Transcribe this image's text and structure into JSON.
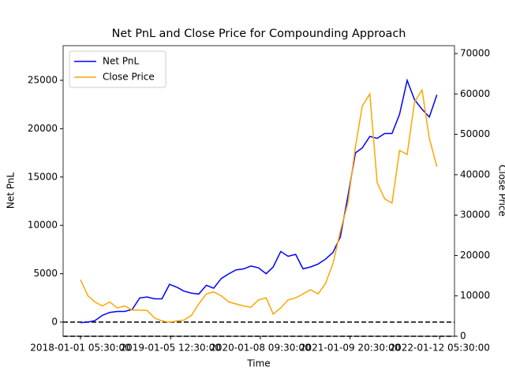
{
  "chart_data": {
    "type": "line",
    "title": "Net PnL and Close Price for Compounding Approach",
    "xlabel": "Time",
    "ylabel": "Net PnL",
    "y2label": "Close Price",
    "x": [
      "2018-01-01",
      "2018-02-01",
      "2018-03-01",
      "2018-04-01",
      "2018-05-01",
      "2018-06-01",
      "2018-07-01",
      "2018-08-01",
      "2018-09-01",
      "2018-10-01",
      "2018-11-01",
      "2018-12-01",
      "2019-01-01",
      "2019-02-01",
      "2019-03-01",
      "2019-04-01",
      "2019-05-01",
      "2019-06-01",
      "2019-07-01",
      "2019-08-01",
      "2019-09-01",
      "2019-10-01",
      "2019-11-01",
      "2019-12-01",
      "2020-01-01",
      "2020-02-01",
      "2020-03-01",
      "2020-04-01",
      "2020-05-01",
      "2020-06-01",
      "2020-07-01",
      "2020-08-01",
      "2020-09-01",
      "2020-10-01",
      "2020-11-01",
      "2020-12-01",
      "2021-01-01",
      "2021-02-01",
      "2021-03-01",
      "2021-04-01",
      "2021-05-01",
      "2021-06-01",
      "2021-07-01",
      "2021-08-01",
      "2021-09-01",
      "2021-10-01",
      "2021-11-01",
      "2021-12-01",
      "2022-01-01"
    ],
    "series": [
      {
        "name": "Net PnL",
        "color": "#0000ff",
        "axis": "y",
        "values": [
          -50,
          0,
          150,
          700,
          1000,
          1100,
          1100,
          1300,
          2500,
          2600,
          2400,
          2400,
          3900,
          3600,
          3200,
          3000,
          2900,
          3800,
          3500,
          4500,
          5000,
          5400,
          5500,
          5800,
          5600,
          5000,
          5700,
          7300,
          6800,
          7000,
          5500,
          5700,
          6000,
          6500,
          7200,
          8800,
          13000,
          17500,
          18000,
          19200,
          19000,
          19500,
          19500,
          21500,
          25000,
          23000,
          22000,
          21200,
          23500
        ]
      },
      {
        "name": "Close Price",
        "color": "#ffa500",
        "axis": "y2",
        "values": [
          14000,
          10000,
          8500,
          7500,
          8500,
          7000,
          7500,
          6500,
          6500,
          6400,
          4500,
          3800,
          3500,
          3800,
          4000,
          5200,
          8000,
          10500,
          11000,
          10000,
          8500,
          8000,
          7500,
          7200,
          9000,
          9500,
          5500,
          7000,
          9000,
          9500,
          10500,
          11500,
          10500,
          13000,
          18000,
          26000,
          33000,
          47000,
          57000,
          60000,
          38000,
          34000,
          33000,
          46000,
          45000,
          58000,
          61000,
          49000,
          42000
        ]
      }
    ],
    "xlim": [
      "2017-10-22",
      "2022-03-14"
    ],
    "xticks": [
      "2018-01-01 05:30:00",
      "2019-01-05 12:30:00",
      "2020-01-08 09:30:00",
      "2021-01-09 20:30:00",
      "2022-01-12 05:30:00"
    ],
    "ylim": [
      -1466,
      28580
    ],
    "yticks": [
      0,
      5000,
      10000,
      15000,
      20000,
      25000
    ],
    "y2lim": [
      0,
      71950
    ],
    "y2ticks": [
      0,
      10000,
      20000,
      30000,
      40000,
      50000,
      60000,
      70000
    ],
    "hlines": [
      {
        "axis": "y",
        "value": 0
      },
      {
        "axis": "y2",
        "value": 0
      }
    ],
    "legend": "upper-left"
  }
}
